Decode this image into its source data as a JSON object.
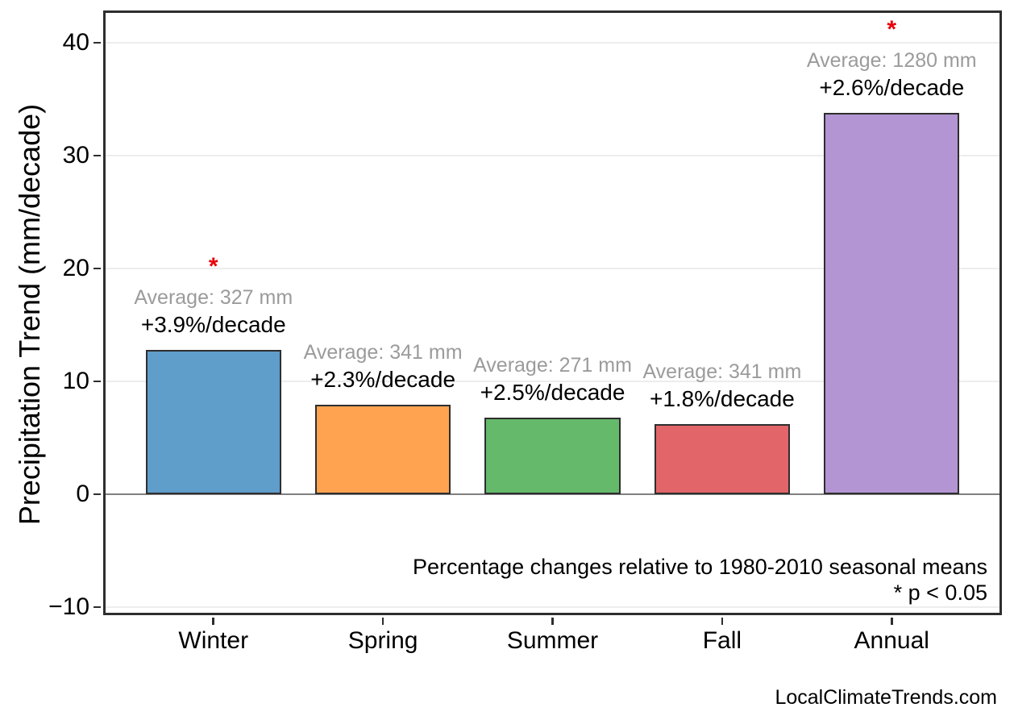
{
  "page": {
    "footer": "LocalClimateTrends.com",
    "background": "#ffffff"
  },
  "chart_data": {
    "type": "bar",
    "title": "",
    "ylabel": "Precipitation Trend (mm/decade)",
    "xlabel": "",
    "categories": [
      "Winter",
      "Spring",
      "Summer",
      "Fall",
      "Annual"
    ],
    "values": [
      12.8,
      7.9,
      6.8,
      6.2,
      33.8
    ],
    "units": "mm/decade",
    "ylim": [
      -10.71,
      42.86
    ],
    "yticks": [
      40,
      30,
      20,
      10,
      0,
      -10
    ],
    "ytick_labels": [
      "40",
      "30",
      "20",
      "10",
      "0",
      "−10"
    ],
    "grid": "horizontal",
    "zero_line": true,
    "legend_position": "none",
    "bars": [
      {
        "category": "Winter",
        "value": 12.8,
        "color": "#5F9DCB",
        "average_label": "Average: 327 mm",
        "percent_label": "+3.9%/decade",
        "significant": true
      },
      {
        "category": "Spring",
        "value": 7.9,
        "color": "#FFA351",
        "average_label": "Average: 341 mm",
        "percent_label": "+2.3%/decade",
        "significant": false
      },
      {
        "category": "Summer",
        "value": 6.8,
        "color": "#64B96B",
        "average_label": "Average: 271 mm",
        "percent_label": "+2.5%/decade",
        "significant": false
      },
      {
        "category": "Fall",
        "value": 6.2,
        "color": "#E26569",
        "average_label": "Average: 341 mm",
        "percent_label": "+1.8%/decade",
        "significant": false
      },
      {
        "category": "Annual",
        "value": 33.8,
        "color": "#B295D2",
        "average_label": "Average: 1280 mm",
        "percent_label": "+2.6%/decade",
        "significant": true
      }
    ],
    "significance_marker": "*",
    "annotations": [
      "Percentage changes relative to 1980-2010 seasonal means",
      "* p < 0.05"
    ],
    "colors": {
      "bar_edge": "#2e2e2e",
      "grid": "#ededed",
      "zero_line": "#808080",
      "average_text": "#9b9b9b",
      "percent_text": "#000000",
      "marker": "#e8000b",
      "spine": "#2e2e2e",
      "axis_text": "#000000"
    }
  }
}
